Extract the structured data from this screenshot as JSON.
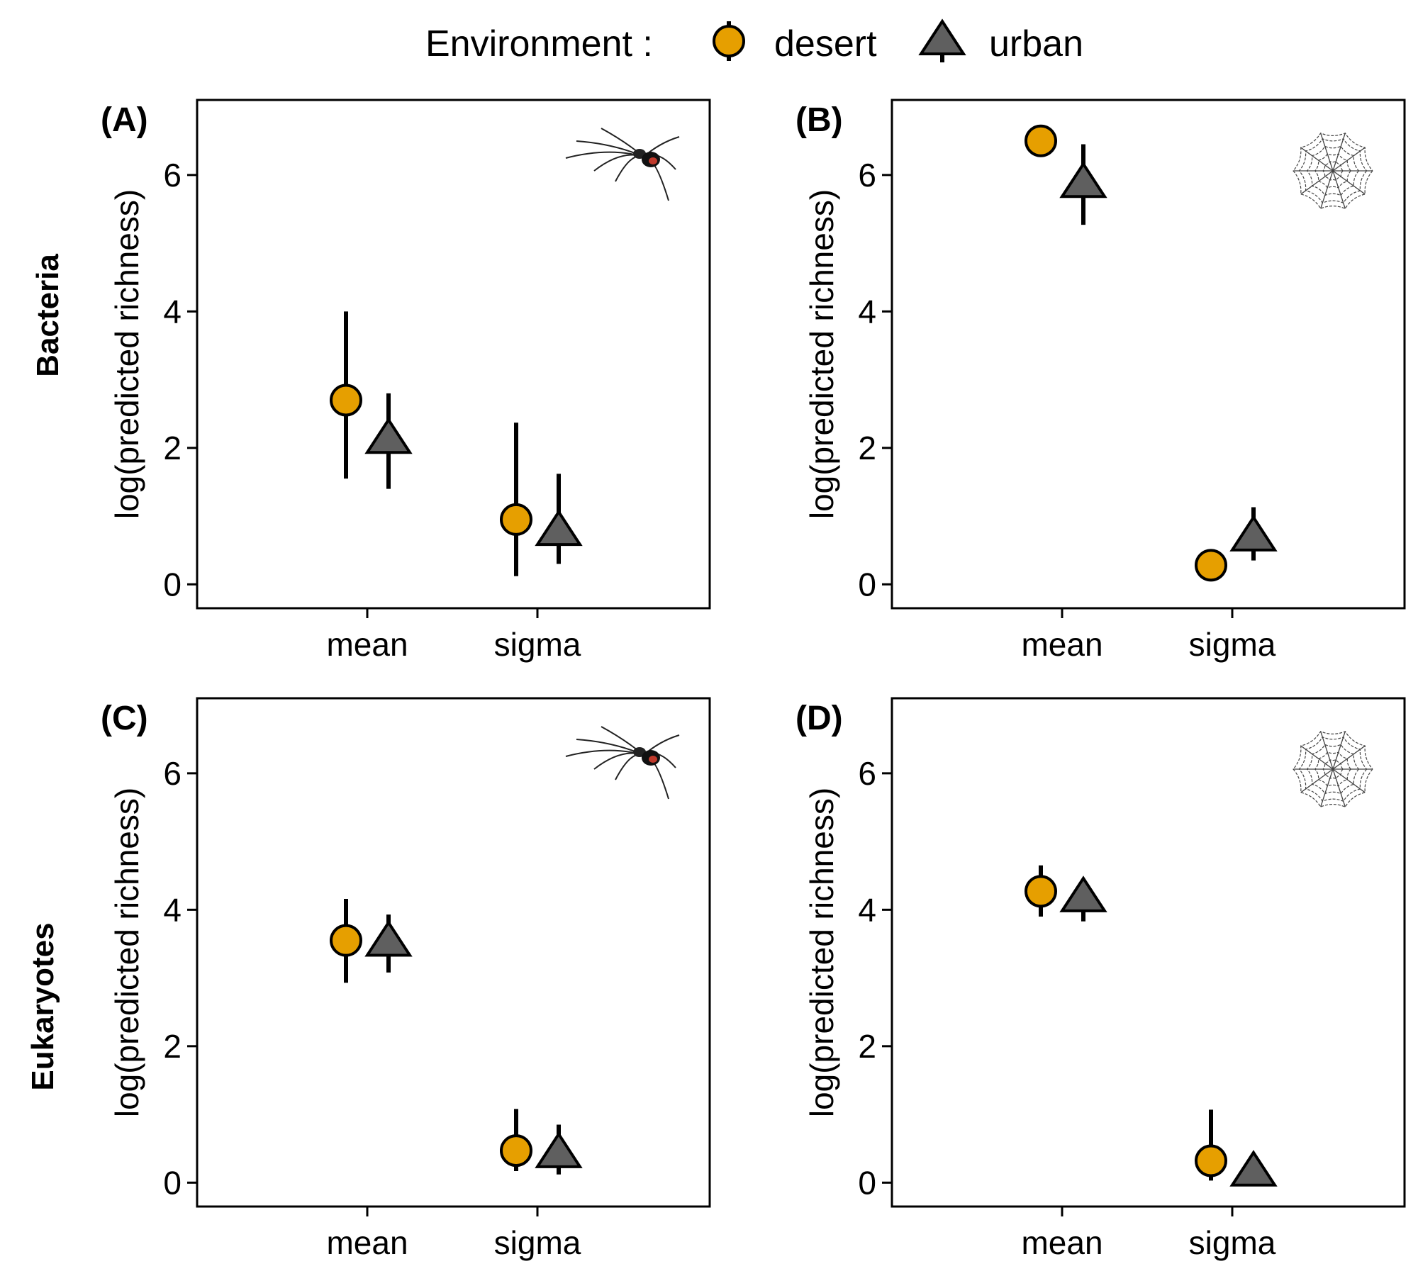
{
  "legend": {
    "title": "Environment :",
    "entries": [
      {
        "label": "desert",
        "shape": "circle",
        "color": "#E69F00"
      },
      {
        "label": "urban",
        "shape": "triangle",
        "color": "#5F5F5F"
      }
    ]
  },
  "rows": [
    "Bacteria",
    "Eukaryotes"
  ],
  "chart_data": [
    {
      "type": "scatter",
      "panel": "(A)",
      "row": "Bacteria",
      "icon": "spider-icon",
      "ylabel": "log(predicted richness)",
      "categories": [
        "mean",
        "sigma"
      ],
      "yticks": [
        0,
        2,
        4,
        6
      ],
      "ylim": [
        -0.35,
        7.1
      ],
      "series": [
        {
          "name": "desert",
          "values": [
            2.7,
            0.95
          ],
          "lower": [
            1.55,
            0.12
          ],
          "upper": [
            4.0,
            2.37
          ]
        },
        {
          "name": "urban",
          "values": [
            2.1,
            0.75
          ],
          "lower": [
            1.4,
            0.3
          ],
          "upper": [
            2.8,
            1.62
          ]
        }
      ]
    },
    {
      "type": "scatter",
      "panel": "(B)",
      "row": "Bacteria",
      "icon": "spider-web-icon",
      "ylabel": "log(predicted richness)",
      "categories": [
        "mean",
        "sigma"
      ],
      "yticks": [
        0,
        2,
        4,
        6
      ],
      "ylim": [
        -0.35,
        7.1
      ],
      "series": [
        {
          "name": "desert",
          "values": [
            6.5,
            0.28
          ],
          "lower": [
            6.5,
            0.28
          ],
          "upper": [
            6.5,
            0.28
          ]
        },
        {
          "name": "urban",
          "values": [
            5.85,
            0.67
          ],
          "lower": [
            5.27,
            0.35
          ],
          "upper": [
            6.45,
            1.13
          ]
        }
      ]
    },
    {
      "type": "scatter",
      "panel": "(C)",
      "row": "Eukaryotes",
      "icon": "spider-icon",
      "ylabel": "log(predicted richness)",
      "categories": [
        "mean",
        "sigma"
      ],
      "yticks": [
        0,
        2,
        4,
        6
      ],
      "ylim": [
        -0.35,
        7.1
      ],
      "series": [
        {
          "name": "desert",
          "values": [
            3.55,
            0.47
          ],
          "lower": [
            2.93,
            0.17
          ],
          "upper": [
            4.16,
            1.08
          ]
        },
        {
          "name": "urban",
          "values": [
            3.5,
            0.4
          ],
          "lower": [
            3.08,
            0.12
          ],
          "upper": [
            3.93,
            0.85
          ]
        }
      ]
    },
    {
      "type": "scatter",
      "panel": "(D)",
      "row": "Eukaryotes",
      "icon": "spider-web-icon",
      "ylabel": "log(predicted richness)",
      "categories": [
        "mean",
        "sigma"
      ],
      "yticks": [
        0,
        2,
        4,
        6
      ],
      "ylim": [
        -0.35,
        7.1
      ],
      "series": [
        {
          "name": "desert",
          "values": [
            4.27,
            0.32
          ],
          "lower": [
            3.9,
            0.03
          ],
          "upper": [
            4.65,
            1.07
          ]
        },
        {
          "name": "urban",
          "values": [
            4.15,
            0.13
          ],
          "lower": [
            3.83,
            0.1
          ],
          "upper": [
            4.3,
            0.2
          ]
        }
      ]
    }
  ]
}
